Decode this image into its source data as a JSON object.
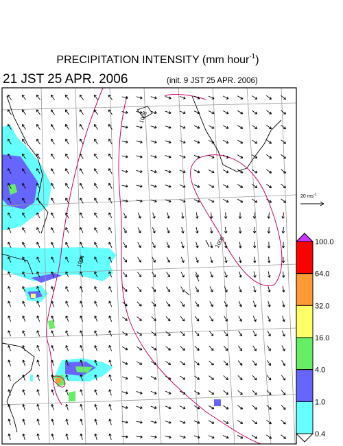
{
  "title": {
    "text": "PRECIPITATION INTENSITY (mm hour",
    "exponent": "-1",
    "close": ")"
  },
  "valid_time": "21 JST 25 APR. 2006",
  "init_time": "(init. 9 JST 25 APR. 2006)",
  "wind_scale": {
    "text": "20 ms",
    "exponent": "-1"
  },
  "isobar_labels": [
    "1008",
    "1004",
    "1006"
  ],
  "colorbar": {
    "labels": [
      "100.0",
      "64.0",
      "32.0",
      "16.0",
      "4.0",
      "1.0",
      "0.4"
    ],
    "colors": [
      "#ff0000",
      "#ff9933",
      "#ffff66",
      "#66ee66",
      "#6666ff",
      "#66ffff"
    ],
    "over_color": "#cc33ff",
    "under_color": "#ffffff"
  }
}
